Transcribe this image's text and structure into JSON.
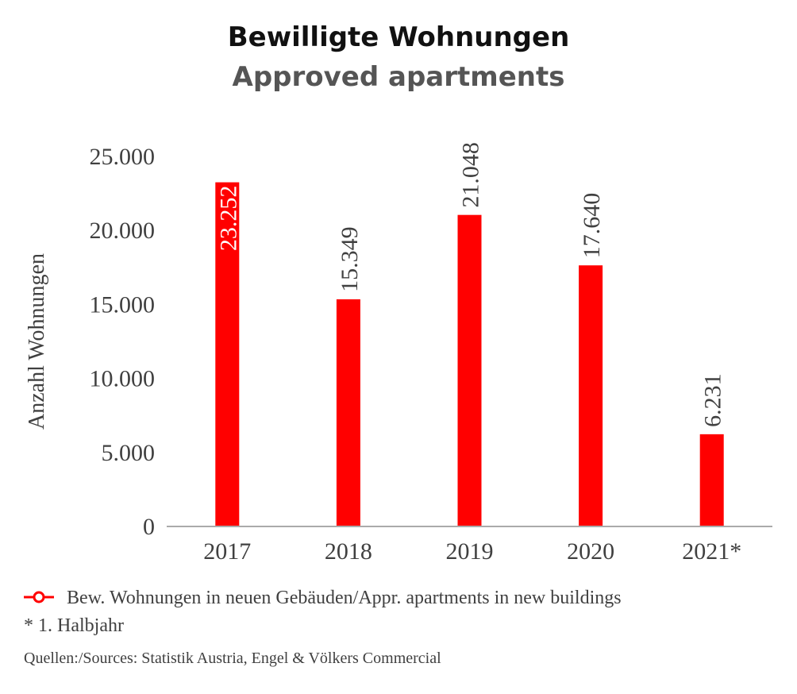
{
  "chart_data": {
    "type": "bar",
    "title": "Bewilligte Wohnungen",
    "subtitle": "Approved apartments",
    "xlabel": "",
    "ylabel": "Anzahl Wohnungen",
    "categories": [
      "2017",
      "2018",
      "2019",
      "2020",
      "2021*"
    ],
    "series": [
      {
        "name": "Bew. Wohnungen in neuen Gebäuden/Appr. apartments in new buildings",
        "values": [
          23252,
          15349,
          21048,
          17640,
          6231
        ],
        "data_labels": [
          "23.252",
          "15.349",
          "21.048",
          "17.640",
          "6.231"
        ]
      }
    ],
    "yticks": [
      {
        "value": 0,
        "label": "0"
      },
      {
        "value": 5000,
        "label": "5.000"
      },
      {
        "value": 10000,
        "label": "10.000"
      },
      {
        "value": 15000,
        "label": "15.000"
      },
      {
        "value": 20000,
        "label": "20.000"
      },
      {
        "value": 25000,
        "label": "25.000"
      }
    ],
    "ylim": [
      0,
      25000
    ],
    "grid": false,
    "legend_position": "bottom-left",
    "colors": {
      "bar": "#ff0000",
      "axis": "#aaaaaa",
      "title": "#111111",
      "subtitle": "#555555",
      "text": "#404040",
      "inside_label": "#ffffff"
    },
    "footnote": "* 1. Halbjahr",
    "source": "Quellen:/Sources: Statistik Austria, Engel & Völkers Commercial"
  }
}
